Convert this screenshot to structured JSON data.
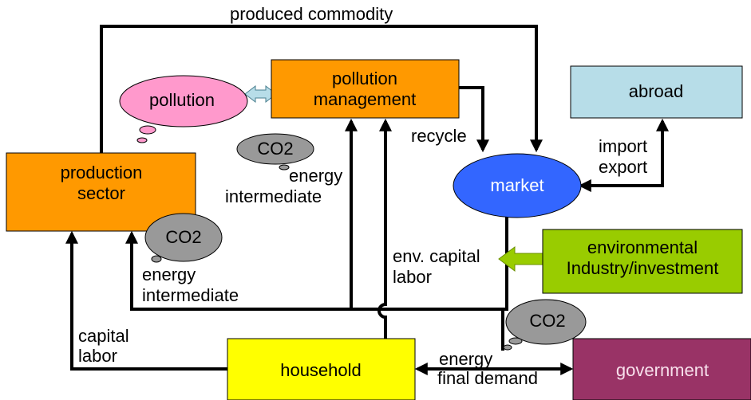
{
  "nodes": [
    {
      "id": "production",
      "lines": [
        "production",
        "sector"
      ]
    },
    {
      "id": "pollution-management",
      "lines": [
        "pollution",
        "management"
      ]
    },
    {
      "id": "abroad",
      "lines": [
        "abroad"
      ]
    },
    {
      "id": "market",
      "lines": [
        "market"
      ]
    },
    {
      "id": "environmental",
      "lines": [
        "environmental",
        "Industry/investment"
      ]
    },
    {
      "id": "household",
      "lines": [
        "household"
      ]
    },
    {
      "id": "government",
      "lines": [
        "government"
      ]
    },
    {
      "id": "pollution",
      "lines": [
        "pollution"
      ]
    }
  ],
  "edge_labels": [
    {
      "lines": [
        "produced  commodity"
      ]
    },
    {
      "lines": [
        "recycle"
      ]
    },
    {
      "lines": [
        "import",
        "export"
      ]
    },
    {
      "lines": [
        "energy",
        "intermediate"
      ]
    },
    {
      "lines": [
        "energy",
        "intermediate"
      ]
    },
    {
      "lines": [
        "env. capital",
        "labor"
      ]
    },
    {
      "lines": [
        "capital",
        "labor"
      ]
    },
    {
      "lines": [
        "energy",
        "final demand"
      ]
    }
  ],
  "co2": [
    "CO2",
    "CO2",
    "CO2"
  ]
}
